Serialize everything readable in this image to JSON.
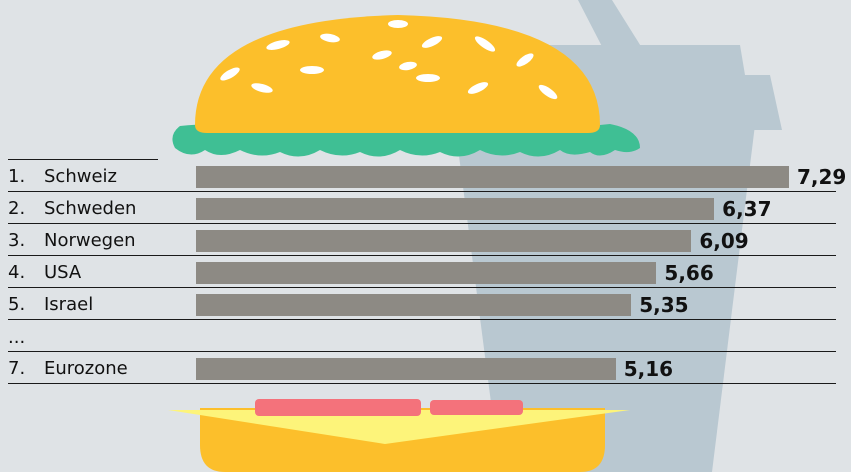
{
  "chart_data": {
    "type": "bar",
    "orientation": "horizontal",
    "title": "",
    "xlabel": "",
    "ylabel": "",
    "categories": [
      "Schweiz",
      "Schweden",
      "Norwegen",
      "USA",
      "Israel",
      "Eurozone"
    ],
    "ranks": [
      "1.",
      "2.",
      "3.",
      "4.",
      "5.",
      "7."
    ],
    "values": [
      7.29,
      6.37,
      6.09,
      5.66,
      5.35,
      5.16
    ],
    "value_labels": [
      "7,29",
      "6,37",
      "6,09",
      "5,66",
      "5,35",
      "5,16"
    ],
    "gap_marker": "...",
    "gap_after_index": 4,
    "bar_color": "#8d8a84",
    "grid": false,
    "legend": "none"
  },
  "illustration": {
    "name": "burger-and-drink-background",
    "bun_color": "#fcbf2b",
    "lettuce_color": "#3fbf94",
    "cup_color": "#b9c8d1",
    "cheese_color": "#fdf47a",
    "tomato_color": "#f4727b",
    "background": "#dfe3e6"
  }
}
